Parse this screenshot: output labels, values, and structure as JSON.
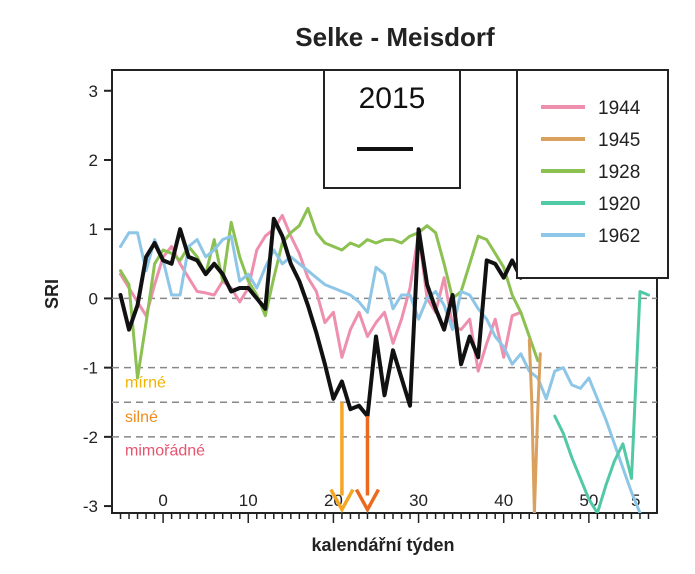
{
  "chart_data": {
    "type": "line",
    "title": "Selke - Meisdorf",
    "xlabel": "kalendářní týden",
    "ylabel": "SRI",
    "xlim": [
      -6,
      58
    ],
    "ylim": [
      -3.1,
      3.3
    ],
    "x_ticks": [
      0,
      10,
      20,
      30,
      40,
      50
    ],
    "x_tick_labels": [
      "0",
      "10",
      "20",
      "30",
      "40",
      "50"
    ],
    "x_tick_extra_label": "5",
    "y_ticks": [
      3,
      2,
      1,
      0,
      -1,
      -2,
      -3
    ],
    "y_tick_labels": [
      "3",
      "2",
      "1",
      "0",
      "-1",
      "-2",
      "-3"
    ],
    "thresholds": [
      {
        "value": 0,
        "label": "",
        "color": "#888888"
      },
      {
        "value": -1,
        "label": "",
        "color": "#888888"
      },
      {
        "value": -1.5,
        "label": "",
        "color": "#888888"
      },
      {
        "value": -2,
        "label": "",
        "color": "#888888"
      }
    ],
    "severity_labels": [
      {
        "text": "mírné",
        "y": -1.2,
        "color": "#f0b400"
      },
      {
        "text": "silné",
        "y": -1.7,
        "color": "#f08c1e"
      },
      {
        "text": "mimořádné",
        "y": -2.18,
        "color": "#e6556e"
      }
    ],
    "arrows": [
      {
        "x": 21,
        "y_from": -1.5,
        "y_to": -3.05,
        "color": "#f5a623"
      },
      {
        "x": 24,
        "y_from": -1.7,
        "y_to": -3.05,
        "color": "#ec6a1f"
      }
    ],
    "inset_legend": {
      "label": "2015",
      "color": "#111111"
    },
    "legend": [
      {
        "name": "1944",
        "color": "#ee8fae"
      },
      {
        "name": "1945",
        "color": "#d9a05e"
      },
      {
        "name": "1928",
        "color": "#8cc152"
      },
      {
        "name": "1920",
        "color": "#52c9a5"
      },
      {
        "name": "1962",
        "color": "#8ec6e8"
      }
    ],
    "series": [
      {
        "name": "1944",
        "color": "#ee8fae",
        "width": 3,
        "x": [
          -5,
          -4,
          -3,
          -2,
          -1,
          0,
          1,
          2,
          3,
          4,
          5,
          6,
          7,
          8,
          9,
          10,
          11,
          12,
          13,
          14,
          15,
          16,
          17,
          18,
          19,
          20,
          21,
          22,
          23,
          24,
          25,
          26,
          27,
          28,
          29,
          30,
          31,
          32,
          33,
          34,
          35,
          36,
          37,
          38,
          39,
          40,
          41,
          42
        ],
        "y": [
          0.35,
          0.15,
          -0.05,
          -0.25,
          0.2,
          0.6,
          0.75,
          0.5,
          0.3,
          0.1,
          0.08,
          0.05,
          0.25,
          0.15,
          -0.05,
          0.15,
          0.7,
          0.9,
          1.0,
          1.2,
          0.9,
          0.65,
          0.3,
          0.1,
          -0.35,
          -0.2,
          -0.85,
          -0.45,
          -0.2,
          -0.55,
          -0.35,
          -0.2,
          -0.65,
          -0.3,
          0.15,
          0.95,
          0.0,
          -0.2,
          0.3,
          -0.4,
          -0.45,
          -0.3,
          -1.05,
          -0.65,
          -0.3,
          -0.85,
          -0.25,
          -0.2
        ]
      },
      {
        "name": "1928",
        "color": "#8cc152",
        "width": 3,
        "x": [
          -5,
          -4,
          -3,
          -2,
          -1,
          0,
          1,
          2,
          3,
          4,
          5,
          6,
          7,
          8,
          9,
          10,
          11,
          12,
          13,
          14,
          15,
          16,
          17,
          18,
          19,
          20,
          21,
          22,
          23,
          24,
          25,
          26,
          27,
          28,
          29,
          30,
          31,
          32,
          33,
          34,
          35,
          36,
          37,
          38,
          39,
          40,
          41,
          42,
          43,
          44
        ],
        "y": [
          0.4,
          0.2,
          -1.15,
          -0.35,
          0.5,
          0.7,
          0.65,
          0.55,
          0.75,
          0.6,
          0.35,
          0.85,
          0.25,
          1.1,
          0.6,
          0.25,
          0.05,
          -0.25,
          0.3,
          0.8,
          0.95,
          1.05,
          1.3,
          0.95,
          0.8,
          0.75,
          0.7,
          0.8,
          0.75,
          0.85,
          0.8,
          0.85,
          0.85,
          0.8,
          0.9,
          0.95,
          1.05,
          0.95,
          0.5,
          0.0,
          0.1,
          0.5,
          0.9,
          0.85,
          0.65,
          0.45,
          0.05,
          -0.2,
          -0.55,
          -0.9
        ]
      },
      {
        "name": "1962",
        "color": "#8ec6e8",
        "width": 3,
        "x": [
          -5,
          -4,
          -3,
          -2,
          -1,
          0,
          1,
          2,
          3,
          4,
          5,
          6,
          7,
          8,
          9,
          10,
          11,
          12,
          13,
          14,
          15,
          16,
          17,
          18,
          19,
          20,
          21,
          22,
          23,
          24,
          25,
          26,
          27,
          28,
          29,
          30,
          31,
          32,
          33,
          34,
          35,
          36,
          37,
          38,
          39,
          40,
          41,
          42,
          43,
          44,
          45,
          46,
          47,
          48,
          49,
          50,
          51,
          52,
          53,
          54,
          55,
          56
        ],
        "y": [
          0.75,
          0.95,
          0.95,
          0.4,
          0.85,
          0.55,
          0.05,
          0.05,
          0.75,
          0.85,
          0.6,
          0.7,
          0.85,
          0.9,
          0.25,
          0.35,
          0.15,
          0.45,
          0.7,
          0.5,
          0.6,
          0.5,
          0.4,
          0.3,
          0.2,
          0.15,
          0.1,
          0.05,
          -0.05,
          -0.2,
          0.45,
          0.35,
          -0.15,
          0.05,
          0.05,
          -0.3,
          0.0,
          0.1,
          -0.1,
          -0.45,
          0.1,
          0.05,
          -0.15,
          -0.3,
          -0.55,
          -0.7,
          -0.95,
          -0.8,
          -1.05,
          -1.15,
          -1.45,
          -1.05,
          -1.0,
          -1.25,
          -1.3,
          -1.15,
          -1.45,
          -1.75,
          -2.1,
          -2.45,
          -2.8,
          -3.1
        ]
      },
      {
        "name": "1920",
        "color": "#52c9a5",
        "width": 3,
        "x": [
          46,
          47,
          48,
          49,
          50,
          51,
          52,
          53,
          54,
          55,
          56,
          57
        ],
        "y": [
          -1.7,
          -1.95,
          -2.3,
          -2.6,
          -2.9,
          -3.1,
          -2.7,
          -2.35,
          -2.1,
          -2.6,
          0.1,
          0.05
        ]
      },
      {
        "name": "1945",
        "color": "#d9a05e",
        "width": 3,
        "x": [
          43,
          43.3,
          43.6,
          44,
          44.3
        ],
        "y": [
          -0.6,
          -1.5,
          -3.1,
          -1.6,
          -0.8
        ]
      },
      {
        "name": "2015",
        "color": "#111111",
        "width": 4,
        "x": [
          -5,
          -4,
          -3,
          -2,
          -1,
          0,
          1,
          2,
          3,
          4,
          5,
          6,
          7,
          8,
          9,
          10,
          11,
          12,
          13,
          14,
          15,
          16,
          17,
          18,
          19,
          20,
          21,
          22,
          23,
          24,
          25,
          26,
          27,
          28,
          29,
          30,
          31,
          32,
          33,
          34,
          35,
          36,
          37,
          38,
          39,
          40,
          41,
          42
        ],
        "y": [
          0.05,
          -0.45,
          -0.1,
          0.6,
          0.8,
          0.55,
          0.5,
          1.0,
          0.6,
          0.55,
          0.35,
          0.5,
          0.35,
          0.1,
          0.15,
          0.15,
          0.0,
          -0.15,
          1.15,
          0.9,
          0.5,
          0.25,
          -0.1,
          -0.5,
          -0.95,
          -1.45,
          -1.2,
          -1.6,
          -1.55,
          -1.7,
          -0.55,
          -1.4,
          -0.75,
          -1.15,
          -1.55,
          1.0,
          0.2,
          -0.15,
          -0.45,
          0.05,
          -0.95,
          -0.55,
          -0.85,
          0.55,
          0.5,
          0.3,
          0.55,
          0.3
        ]
      }
    ]
  }
}
